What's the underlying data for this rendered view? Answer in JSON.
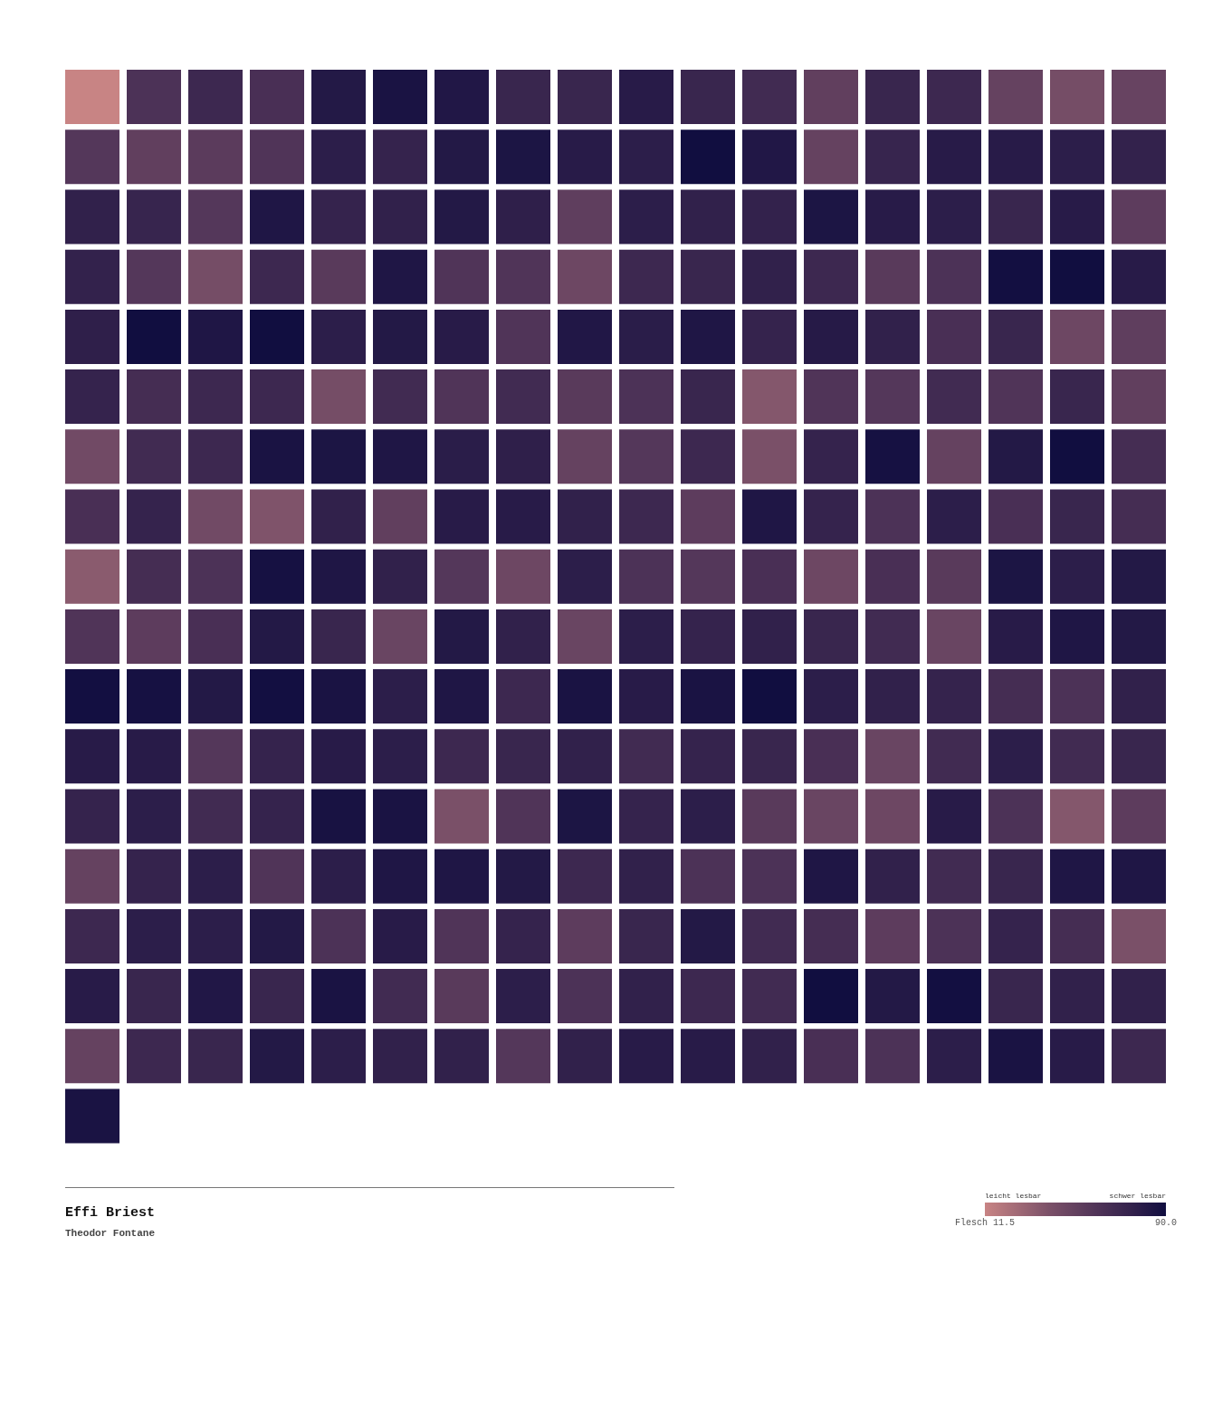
{
  "chart_data": {
    "type": "heatmap",
    "title": "Effi Briest",
    "subtitle": "Theodor Fontane",
    "categories": [
      null,
      null,
      null,
      null,
      null,
      null,
      null,
      null,
      null,
      null,
      null,
      null,
      null,
      null,
      null,
      null,
      null,
      null
    ],
    "y_categories": [
      null,
      null,
      null,
      null,
      null,
      null,
      null,
      null,
      null,
      null,
      null,
      null,
      null,
      null,
      null,
      null,
      null,
      null
    ],
    "cells": [
      [
        11.5,
        62,
        70,
        64,
        82,
        86,
        83,
        72,
        72,
        80,
        72,
        68,
        52,
        72,
        70,
        50,
        42,
        49
      ],
      [
        58,
        52,
        55,
        60,
        78,
        74,
        82,
        85,
        80,
        78,
        90,
        83,
        50,
        73,
        80,
        80,
        78,
        75
      ],
      [
        76,
        73,
        58,
        84,
        74,
        76,
        82,
        77,
        53,
        78,
        76,
        75,
        85,
        80,
        78,
        72,
        80,
        54
      ],
      [
        75,
        58,
        42,
        70,
        56,
        84,
        60,
        60,
        46,
        70,
        72,
        76,
        70,
        56,
        62,
        89,
        90,
        80
      ],
      [
        77,
        90,
        84,
        90,
        78,
        82,
        80,
        60,
        83,
        79,
        84,
        74,
        81,
        76,
        64,
        72,
        46,
        53
      ],
      [
        74,
        66,
        70,
        70,
        42,
        68,
        60,
        68,
        56,
        62,
        72,
        36,
        60,
        58,
        68,
        60,
        72,
        52
      ],
      [
        44,
        68,
        70,
        86,
        85,
        84,
        79,
        77,
        50,
        58,
        70,
        40,
        74,
        88,
        50,
        82,
        90,
        66
      ],
      [
        64,
        74,
        44,
        38,
        76,
        52,
        80,
        80,
        76,
        70,
        54,
        84,
        74,
        62,
        78,
        64,
        72,
        66
      ],
      [
        34,
        66,
        62,
        88,
        84,
        76,
        58,
        46,
        78,
        62,
        58,
        64,
        46,
        64,
        56,
        85,
        78,
        82
      ],
      [
        60,
        54,
        64,
        82,
        72,
        48,
        82,
        76,
        48,
        78,
        74,
        76,
        72,
        68,
        48,
        80,
        84,
        82
      ],
      [
        89,
        88,
        82,
        89,
        86,
        78,
        84,
        70,
        86,
        80,
        86,
        90,
        78,
        76,
        74,
        66,
        62,
        76
      ],
      [
        80,
        80,
        58,
        74,
        80,
        78,
        70,
        72,
        76,
        68,
        74,
        72,
        64,
        48,
        68,
        78,
        68,
        72
      ],
      [
        74,
        78,
        68,
        74,
        87,
        86,
        40,
        60,
        85,
        74,
        78,
        56,
        48,
        46,
        80,
        62,
        36,
        54
      ],
      [
        50,
        74,
        78,
        60,
        78,
        84,
        84,
        82,
        70,
        76,
        62,
        62,
        84,
        76,
        68,
        72,
        84,
        84
      ],
      [
        70,
        78,
        78,
        82,
        62,
        80,
        60,
        74,
        54,
        72,
        82,
        68,
        66,
        54,
        62,
        74,
        66,
        40
      ],
      [
        80,
        72,
        83,
        72,
        86,
        68,
        56,
        78,
        62,
        76,
        70,
        68,
        90,
        82,
        89,
        72,
        76,
        76
      ],
      [
        50,
        70,
        72,
        82,
        78,
        76,
        76,
        58,
        76,
        80,
        80,
        76,
        64,
        62,
        78,
        86,
        80,
        70
      ],
      [
        86,
        null,
        null,
        null,
        null,
        null,
        null,
        null,
        null,
        null,
        null,
        null,
        null,
        null,
        null,
        null,
        null,
        null
      ]
    ],
    "clim": [
      11.5,
      90
    ],
    "cticks": [
      {
        "value": 11.5,
        "label": "Flesch 11.5"
      },
      {
        "value": 90,
        "label": "90.0"
      }
    ],
    "annotations": [
      "leicht lesbar",
      "schwer lesbar"
    ],
    "tick_labels": false
  }
}
